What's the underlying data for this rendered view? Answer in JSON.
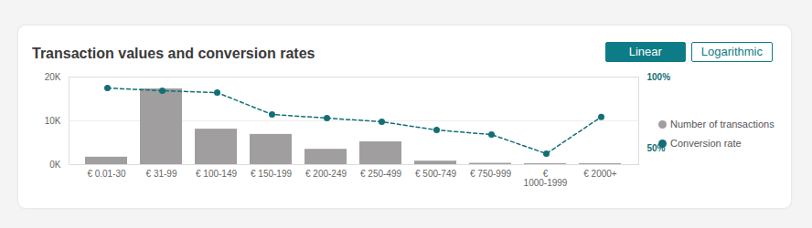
{
  "chart_data": {
    "type": "bar",
    "title": "Transaction values and conversion rates",
    "buttons": [
      "Linear",
      "Logarithmic"
    ],
    "categories": [
      "€ 0.01-30",
      "€ 31-99",
      "€ 100-149",
      "€ 150-199",
      "€ 200-249",
      "€ 250-499",
      "€ 500-749",
      "€ 750-999",
      "€ 1000-1999",
      "€ 2000+"
    ],
    "series": [
      {
        "name": "Number of transactions",
        "type": "bar",
        "color": "#a09e9e",
        "values": [
          1700,
          17300,
          8100,
          6900,
          3500,
          5200,
          800,
          300,
          200,
          200
        ]
      },
      {
        "name": "Conversion rate",
        "type": "line",
        "axis": "y2",
        "color": "#136f77",
        "line_style": "dashed",
        "marker": "circle",
        "values": [
          92.3,
          90.4,
          89.1,
          73.7,
          71.2,
          68.6,
          62.8,
          59.6,
          46.2,
          72
        ]
      }
    ],
    "ylim": [
      0,
      20000
    ],
    "yticks": [
      {
        "value": 0,
        "label": "0K"
      },
      {
        "value": 10000,
        "label": "10K"
      },
      {
        "value": 20000,
        "label": "20K"
      }
    ],
    "y2lim": [
      38.5,
      100
    ],
    "y2ticks": [
      {
        "value": 50,
        "label": "50%"
      },
      {
        "value": 100,
        "label": "100%"
      }
    ],
    "grid": true,
    "legend": "right"
  }
}
